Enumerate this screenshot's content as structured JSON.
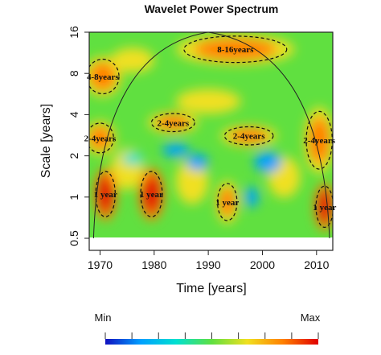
{
  "chart_data": {
    "type": "heatmap",
    "title": "Wavelet Power Spectrum",
    "xlabel": "Time [years]",
    "ylabel": "Scale [years]",
    "xlim": [
      1968,
      2013
    ],
    "ylim": [
      0.5,
      16
    ],
    "y_scale": "log2",
    "x_ticks": [
      1970,
      1980,
      1990,
      2000,
      2010
    ],
    "x_tick_labels": [
      "1970",
      "1980",
      "1990",
      "2000",
      "2010"
    ],
    "y_ticks": [
      0.5,
      1,
      2,
      4,
      8,
      16
    ],
    "y_tick_labels": [
      "0.5",
      "1",
      "2",
      "4",
      "8",
      "16"
    ],
    "colorbar": {
      "min_label": "Min",
      "max_label": "Max",
      "colors": [
        "#1010c0",
        "#00a0ff",
        "#00e0d0",
        "#60e040",
        "#f0e020",
        "#ff8000",
        "#e00000"
      ]
    },
    "regions": [
      {
        "label": "8-16years",
        "x": 1995,
        "y": 12,
        "rx": 9.5,
        "ry": 0.32,
        "level": 0.88
      },
      {
        "label": "4-8years",
        "x": 1970.5,
        "y": 7.6,
        "rx": 3,
        "ry": 0.42,
        "level": 0.85
      },
      {
        "label": "2-4years",
        "x": 1983.5,
        "y": 3.5,
        "rx": 4,
        "ry": 0.22,
        "level": 0.82
      },
      {
        "label": "2-4years",
        "x": 1970,
        "y": 2.7,
        "rx": 2.5,
        "ry": 0.36,
        "level": 0.86
      },
      {
        "label": "2-4years",
        "x": 1997.5,
        "y": 2.8,
        "rx": 4.5,
        "ry": 0.22,
        "level": 0.85
      },
      {
        "label": "2-4years",
        "x": 2010.5,
        "y": 2.6,
        "rx": 2.4,
        "ry": 0.7,
        "level": 0.9
      },
      {
        "label": "1 year",
        "x": 1971,
        "y": 1.05,
        "rx": 1.8,
        "ry": 0.55,
        "level": 0.95
      },
      {
        "label": "1 year",
        "x": 1979.5,
        "y": 1.05,
        "rx": 2,
        "ry": 0.55,
        "level": 0.95
      },
      {
        "label": "1 year",
        "x": 1993.5,
        "y": 0.92,
        "rx": 1.8,
        "ry": 0.45,
        "level": 0.9
      },
      {
        "label": "1 year",
        "x": 2011.5,
        "y": 0.85,
        "rx": 1.6,
        "ry": 0.5,
        "level": 0.97
      }
    ],
    "cone_of_influence": true,
    "grid": false
  }
}
